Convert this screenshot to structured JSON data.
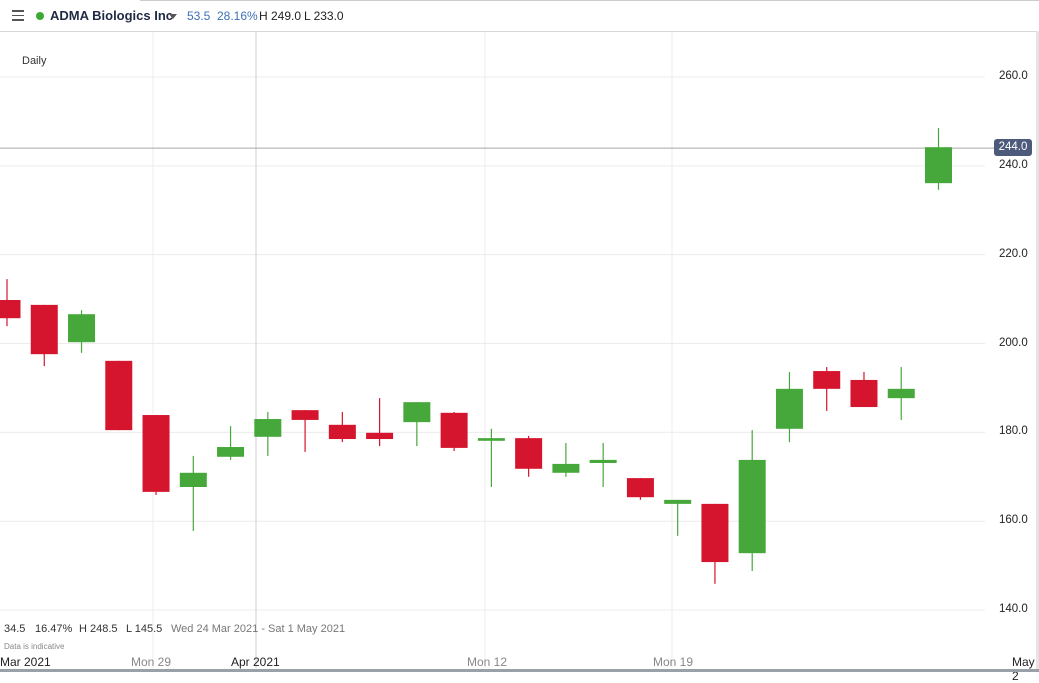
{
  "header": {
    "instrument": "ADMA Biologics Inc",
    "change": "53.5",
    "change_pct": "28.16%",
    "high": "H 249.0",
    "low": "L 233.0",
    "status_color": "#3aaa35"
  },
  "interval": "Daily",
  "footer": {
    "change": "34.5",
    "change_pct": "16.47%",
    "high": "H 248.5",
    "low": "L 145.5",
    "range": "Wed 24 Mar 2021 - Sat 1 May 2021",
    "note": "Data is indicative"
  },
  "crosshair_price": "244.0",
  "chart_data": {
    "type": "candlestick",
    "title": "",
    "y_ticks": [
      "260.0",
      "240.0",
      "220.0",
      "200.0",
      "180.0",
      "160.0",
      "140.0"
    ],
    "ylim": [
      134,
      268
    ],
    "x_ticks": [
      "Mar 2021",
      "Mon 29",
      "Apr 2021",
      "Mon 12",
      "Mon 19",
      "May 2"
    ],
    "grid": true,
    "up_color": "#46a83a",
    "down_color": "#d5152d",
    "candles": [
      {
        "date": "2021-03-23",
        "open": 209.8,
        "high": 214.5,
        "low": 203.9,
        "close": 205.7
      },
      {
        "date": "2021-03-24",
        "open": 208.7,
        "high": 208.7,
        "low": 194.9,
        "close": 197.6
      },
      {
        "date": "2021-03-25",
        "open": 200.3,
        "high": 207.5,
        "low": 197.9,
        "close": 206.6
      },
      {
        "date": "2021-03-26",
        "open": 196.1,
        "high": 196.1,
        "low": 180.5,
        "close": 180.5
      },
      {
        "date": "2021-03-29",
        "open": 183.9,
        "high": 183.9,
        "low": 165.9,
        "close": 166.6
      },
      {
        "date": "2021-03-30",
        "open": 167.7,
        "high": 174.7,
        "low": 157.8,
        "close": 170.9
      },
      {
        "date": "2021-03-31",
        "open": 174.5,
        "high": 181.4,
        "low": 173.8,
        "close": 176.7
      },
      {
        "date": "2021-04-01",
        "open": 179.0,
        "high": 184.6,
        "low": 174.7,
        "close": 183.0
      },
      {
        "date": "2021-04-05",
        "open": 185.0,
        "high": 185.0,
        "low": 175.6,
        "close": 182.8
      },
      {
        "date": "2021-04-06",
        "open": 181.7,
        "high": 184.6,
        "low": 177.8,
        "close": 178.5
      },
      {
        "date": "2021-04-07",
        "open": 179.9,
        "high": 187.7,
        "low": 176.9,
        "close": 178.5
      },
      {
        "date": "2021-04-08",
        "open": 182.3,
        "high": 186.8,
        "low": 176.9,
        "close": 186.8
      },
      {
        "date": "2021-04-09",
        "open": 184.4,
        "high": 184.6,
        "low": 175.8,
        "close": 176.5
      },
      {
        "date": "2021-04-12",
        "open": 178.1,
        "high": 180.8,
        "low": 167.7,
        "close": 178.7
      },
      {
        "date": "2021-04-13",
        "open": 178.7,
        "high": 179.2,
        "low": 170.0,
        "close": 171.8
      },
      {
        "date": "2021-04-14",
        "open": 170.9,
        "high": 177.6,
        "low": 170.0,
        "close": 172.9
      },
      {
        "date": "2021-04-15",
        "open": 173.1,
        "high": 177.6,
        "low": 167.7,
        "close": 173.8
      },
      {
        "date": "2021-04-16",
        "open": 169.7,
        "high": 169.7,
        "low": 164.8,
        "close": 165.4
      },
      {
        "date": "2021-04-19",
        "open": 163.9,
        "high": 164.8,
        "low": 156.7,
        "close": 164.8
      },
      {
        "date": "2021-04-20",
        "open": 163.9,
        "high": 163.9,
        "low": 145.9,
        "close": 150.8
      },
      {
        "date": "2021-04-21",
        "open": 152.8,
        "high": 180.5,
        "low": 148.8,
        "close": 173.8
      },
      {
        "date": "2021-04-22",
        "open": 180.8,
        "high": 193.6,
        "low": 177.8,
        "close": 189.8
      },
      {
        "date": "2021-04-23",
        "open": 193.8,
        "high": 194.7,
        "low": 184.8,
        "close": 189.8
      },
      {
        "date": "2021-04-26",
        "open": 191.8,
        "high": 193.6,
        "low": 185.7,
        "close": 185.7
      },
      {
        "date": "2021-04-27",
        "open": 187.7,
        "high": 194.7,
        "low": 182.8,
        "close": 189.8
      },
      {
        "date": "2021-04-28",
        "open": 236.1,
        "high": 248.5,
        "low": 234.6,
        "close": 244.2
      }
    ]
  }
}
